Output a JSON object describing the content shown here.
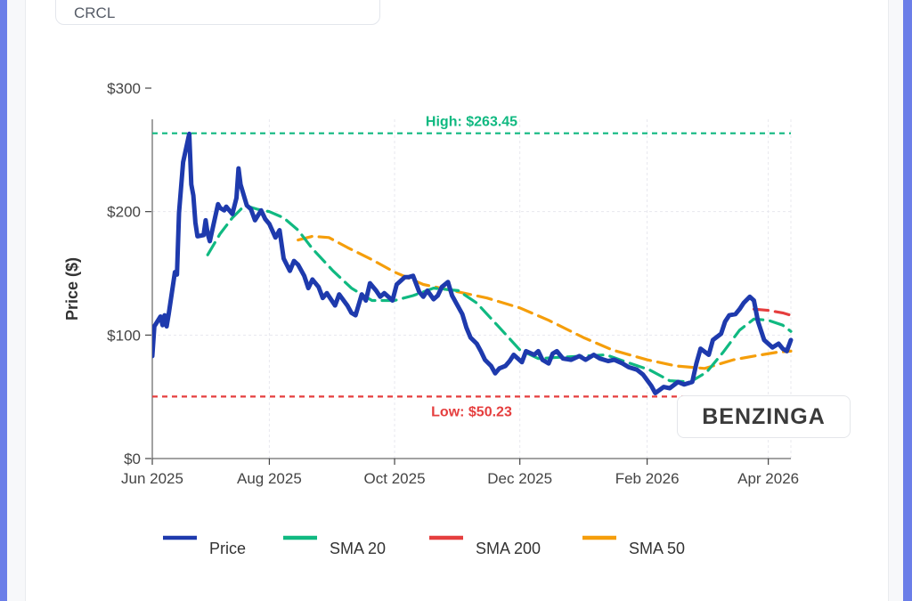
{
  "ticker": "CRCL",
  "watermark": "BENZINGA",
  "chart_data": {
    "type": "line",
    "title": "",
    "ylabel": "Price ($)",
    "xlabel": "",
    "ylim": [
      0,
      300
    ],
    "x_range": [
      "2025-06-05",
      "2026-04-12"
    ],
    "y_ticks": [
      {
        "value": 0,
        "label": "$0"
      },
      {
        "value": 100,
        "label": "$100"
      },
      {
        "value": 200,
        "label": "$200"
      },
      {
        "value": 300,
        "label": "$300"
      }
    ],
    "x_ticks": [
      {
        "date": "2025-06-01",
        "label": "Jun 2025"
      },
      {
        "date": "2025-08-01",
        "label": "Aug 2025"
      },
      {
        "date": "2025-10-01",
        "label": "Oct 2025"
      },
      {
        "date": "2025-12-01",
        "label": "Dec 2025"
      },
      {
        "date": "2026-02-01",
        "label": "Feb 2026"
      },
      {
        "date": "2026-04-01",
        "label": "Apr 2026"
      }
    ],
    "reference_lines": [
      {
        "name": "high",
        "value": 263.45,
        "label": "High: $263.45",
        "color": "#10b981"
      },
      {
        "name": "low",
        "value": 50.23,
        "label": "Low: $50.23",
        "color": "#e53e3e"
      }
    ],
    "series": [
      {
        "name": "Price",
        "color": "#1e3aad",
        "points": [
          [
            "2025-06-05",
            83
          ],
          [
            "2025-06-06",
            107
          ],
          [
            "2025-06-09",
            115
          ],
          [
            "2025-06-10",
            108
          ],
          [
            "2025-06-11",
            116
          ],
          [
            "2025-06-12",
            107
          ],
          [
            "2025-06-13",
            117
          ],
          [
            "2025-06-16",
            151
          ],
          [
            "2025-06-17",
            149
          ],
          [
            "2025-06-18",
            199
          ],
          [
            "2025-06-20",
            240
          ],
          [
            "2025-06-23",
            263
          ],
          [
            "2025-06-24",
            222
          ],
          [
            "2025-06-25",
            213
          ],
          [
            "2025-06-26",
            191
          ],
          [
            "2025-06-27",
            180
          ],
          [
            "2025-06-30",
            181
          ],
          [
            "2025-07-01",
            193
          ],
          [
            "2025-07-02",
            182
          ],
          [
            "2025-07-03",
            176
          ],
          [
            "2025-07-07",
            206
          ],
          [
            "2025-07-08",
            203
          ],
          [
            "2025-07-10",
            201
          ],
          [
            "2025-07-11",
            204
          ],
          [
            "2025-07-14",
            198
          ],
          [
            "2025-07-16",
            211
          ],
          [
            "2025-07-17",
            235
          ],
          [
            "2025-07-18",
            222
          ],
          [
            "2025-07-21",
            205
          ],
          [
            "2025-07-23",
            202
          ],
          [
            "2025-07-25",
            193
          ],
          [
            "2025-07-28",
            201
          ],
          [
            "2025-07-30",
            194
          ],
          [
            "2025-08-01",
            190
          ],
          [
            "2025-08-04",
            179
          ],
          [
            "2025-08-06",
            185
          ],
          [
            "2025-08-08",
            162
          ],
          [
            "2025-08-11",
            152
          ],
          [
            "2025-08-13",
            160
          ],
          [
            "2025-08-15",
            157
          ],
          [
            "2025-08-18",
            148
          ],
          [
            "2025-08-20",
            138
          ],
          [
            "2025-08-22",
            145
          ],
          [
            "2025-08-25",
            139
          ],
          [
            "2025-08-27",
            130
          ],
          [
            "2025-08-29",
            134
          ],
          [
            "2025-09-02",
            124
          ],
          [
            "2025-09-04",
            133
          ],
          [
            "2025-09-08",
            124
          ],
          [
            "2025-09-10",
            118
          ],
          [
            "2025-09-12",
            116
          ],
          [
            "2025-09-15",
            133
          ],
          [
            "2025-09-17",
            128
          ],
          [
            "2025-09-19",
            142
          ],
          [
            "2025-09-22",
            136
          ],
          [
            "2025-09-24",
            131
          ],
          [
            "2025-09-26",
            134
          ],
          [
            "2025-09-30",
            128
          ],
          [
            "2025-10-02",
            141
          ],
          [
            "2025-10-06",
            147
          ],
          [
            "2025-10-08",
            147
          ],
          [
            "2025-10-10",
            148
          ],
          [
            "2025-10-13",
            135
          ],
          [
            "2025-10-15",
            131
          ],
          [
            "2025-10-17",
            136
          ],
          [
            "2025-10-20",
            129
          ],
          [
            "2025-10-22",
            132
          ],
          [
            "2025-10-24",
            139
          ],
          [
            "2025-10-27",
            143
          ],
          [
            "2025-10-29",
            132
          ],
          [
            "2025-10-31",
            126
          ],
          [
            "2025-11-03",
            117
          ],
          [
            "2025-11-05",
            106
          ],
          [
            "2025-11-07",
            98
          ],
          [
            "2025-11-10",
            93
          ],
          [
            "2025-11-12",
            87
          ],
          [
            "2025-11-14",
            80
          ],
          [
            "2025-11-17",
            75
          ],
          [
            "2025-11-19",
            69
          ],
          [
            "2025-11-21",
            73
          ],
          [
            "2025-11-24",
            75
          ],
          [
            "2025-11-26",
            79
          ],
          [
            "2025-11-28",
            84
          ],
          [
            "2025-12-02",
            78
          ],
          [
            "2025-12-04",
            87
          ],
          [
            "2025-12-08",
            84
          ],
          [
            "2025-12-10",
            87
          ],
          [
            "2025-12-12",
            80
          ],
          [
            "2025-12-15",
            77
          ],
          [
            "2025-12-17",
            85
          ],
          [
            "2025-12-19",
            87
          ],
          [
            "2025-12-22",
            81
          ],
          [
            "2025-12-26",
            80
          ],
          [
            "2025-12-30",
            83
          ],
          [
            "2026-01-02",
            80
          ],
          [
            "2026-01-06",
            84
          ],
          [
            "2026-01-09",
            81
          ],
          [
            "2026-01-13",
            79
          ],
          [
            "2026-01-16",
            80
          ],
          [
            "2026-01-20",
            77
          ],
          [
            "2026-01-23",
            74
          ],
          [
            "2026-01-27",
            72
          ],
          [
            "2026-01-30",
            68
          ],
          [
            "2026-02-03",
            59
          ],
          [
            "2026-02-05",
            53
          ],
          [
            "2026-02-09",
            58
          ],
          [
            "2026-02-12",
            57
          ],
          [
            "2026-02-16",
            62
          ],
          [
            "2026-02-19",
            60
          ],
          [
            "2026-02-23",
            62
          ],
          [
            "2026-02-25",
            77
          ],
          [
            "2026-02-27",
            89
          ],
          [
            "2026-03-03",
            84
          ],
          [
            "2026-03-05",
            96
          ],
          [
            "2026-03-09",
            101
          ],
          [
            "2026-03-11",
            111
          ],
          [
            "2026-03-13",
            116
          ],
          [
            "2026-03-16",
            117
          ],
          [
            "2026-03-18",
            121
          ],
          [
            "2026-03-20",
            126
          ],
          [
            "2026-03-23",
            131
          ],
          [
            "2026-03-25",
            128
          ],
          [
            "2026-03-27",
            111
          ],
          [
            "2026-03-30",
            96
          ],
          [
            "2026-04-01",
            93
          ],
          [
            "2026-04-03",
            90
          ],
          [
            "2026-04-06",
            93
          ],
          [
            "2026-04-08",
            89
          ],
          [
            "2026-04-10",
            87
          ],
          [
            "2026-04-12",
            96
          ]
        ]
      },
      {
        "name": "SMA 20",
        "color": "#10b981",
        "points": [
          [
            "2025-07-02",
            165
          ],
          [
            "2025-07-08",
            182
          ],
          [
            "2025-07-14",
            195
          ],
          [
            "2025-07-20",
            205
          ],
          [
            "2025-07-26",
            202
          ],
          [
            "2025-08-01",
            200
          ],
          [
            "2025-08-08",
            195
          ],
          [
            "2025-08-15",
            185
          ],
          [
            "2025-08-22",
            170
          ],
          [
            "2025-09-01",
            152
          ],
          [
            "2025-09-10",
            138
          ],
          [
            "2025-09-20",
            128
          ],
          [
            "2025-10-01",
            128
          ],
          [
            "2025-10-10",
            132
          ],
          [
            "2025-10-20",
            138
          ],
          [
            "2025-11-01",
            136
          ],
          [
            "2025-11-10",
            126
          ],
          [
            "2025-11-20",
            108
          ],
          [
            "2025-12-01",
            88
          ],
          [
            "2025-12-10",
            81
          ],
          [
            "2025-12-20",
            82
          ],
          [
            "2026-01-01",
            83
          ],
          [
            "2026-01-12",
            84
          ],
          [
            "2026-01-22",
            78
          ],
          [
            "2026-02-02",
            72
          ],
          [
            "2026-02-12",
            63
          ],
          [
            "2026-02-22",
            62
          ],
          [
            "2026-03-02",
            70
          ],
          [
            "2026-03-10",
            86
          ],
          [
            "2026-03-18",
            104
          ],
          [
            "2026-03-25",
            113
          ],
          [
            "2026-04-01",
            112
          ],
          [
            "2026-04-08",
            108
          ],
          [
            "2026-04-12",
            103
          ]
        ]
      },
      {
        "name": "SMA 200",
        "color": "#e53e3e",
        "points": [
          [
            "2026-03-25",
            121
          ],
          [
            "2026-04-01",
            120
          ],
          [
            "2026-04-08",
            118
          ],
          [
            "2026-04-12",
            116
          ]
        ]
      },
      {
        "name": "SMA 50",
        "color": "#f59e0b",
        "points": [
          [
            "2025-08-15",
            177
          ],
          [
            "2025-08-22",
            180
          ],
          [
            "2025-08-30",
            179
          ],
          [
            "2025-09-08",
            171
          ],
          [
            "2025-09-20",
            161
          ],
          [
            "2025-10-01",
            151
          ],
          [
            "2025-10-15",
            141
          ],
          [
            "2025-11-01",
            135
          ],
          [
            "2025-11-15",
            130
          ],
          [
            "2025-12-01",
            122
          ],
          [
            "2025-12-15",
            112
          ],
          [
            "2026-01-01",
            98
          ],
          [
            "2026-01-15",
            88
          ],
          [
            "2026-02-01",
            80
          ],
          [
            "2026-02-15",
            75
          ],
          [
            "2026-03-01",
            73
          ],
          [
            "2026-03-15",
            80
          ],
          [
            "2026-03-25",
            83
          ],
          [
            "2026-04-05",
            86
          ],
          [
            "2026-04-12",
            87
          ]
        ]
      }
    ],
    "legend": [
      {
        "name": "Price",
        "color": "#1e3aad"
      },
      {
        "name": "SMA 20",
        "color": "#10b981"
      },
      {
        "name": "SMA 200",
        "color": "#e53e3e"
      },
      {
        "name": "SMA 50",
        "color": "#f59e0b"
      }
    ],
    "legend_position": "bottom"
  }
}
